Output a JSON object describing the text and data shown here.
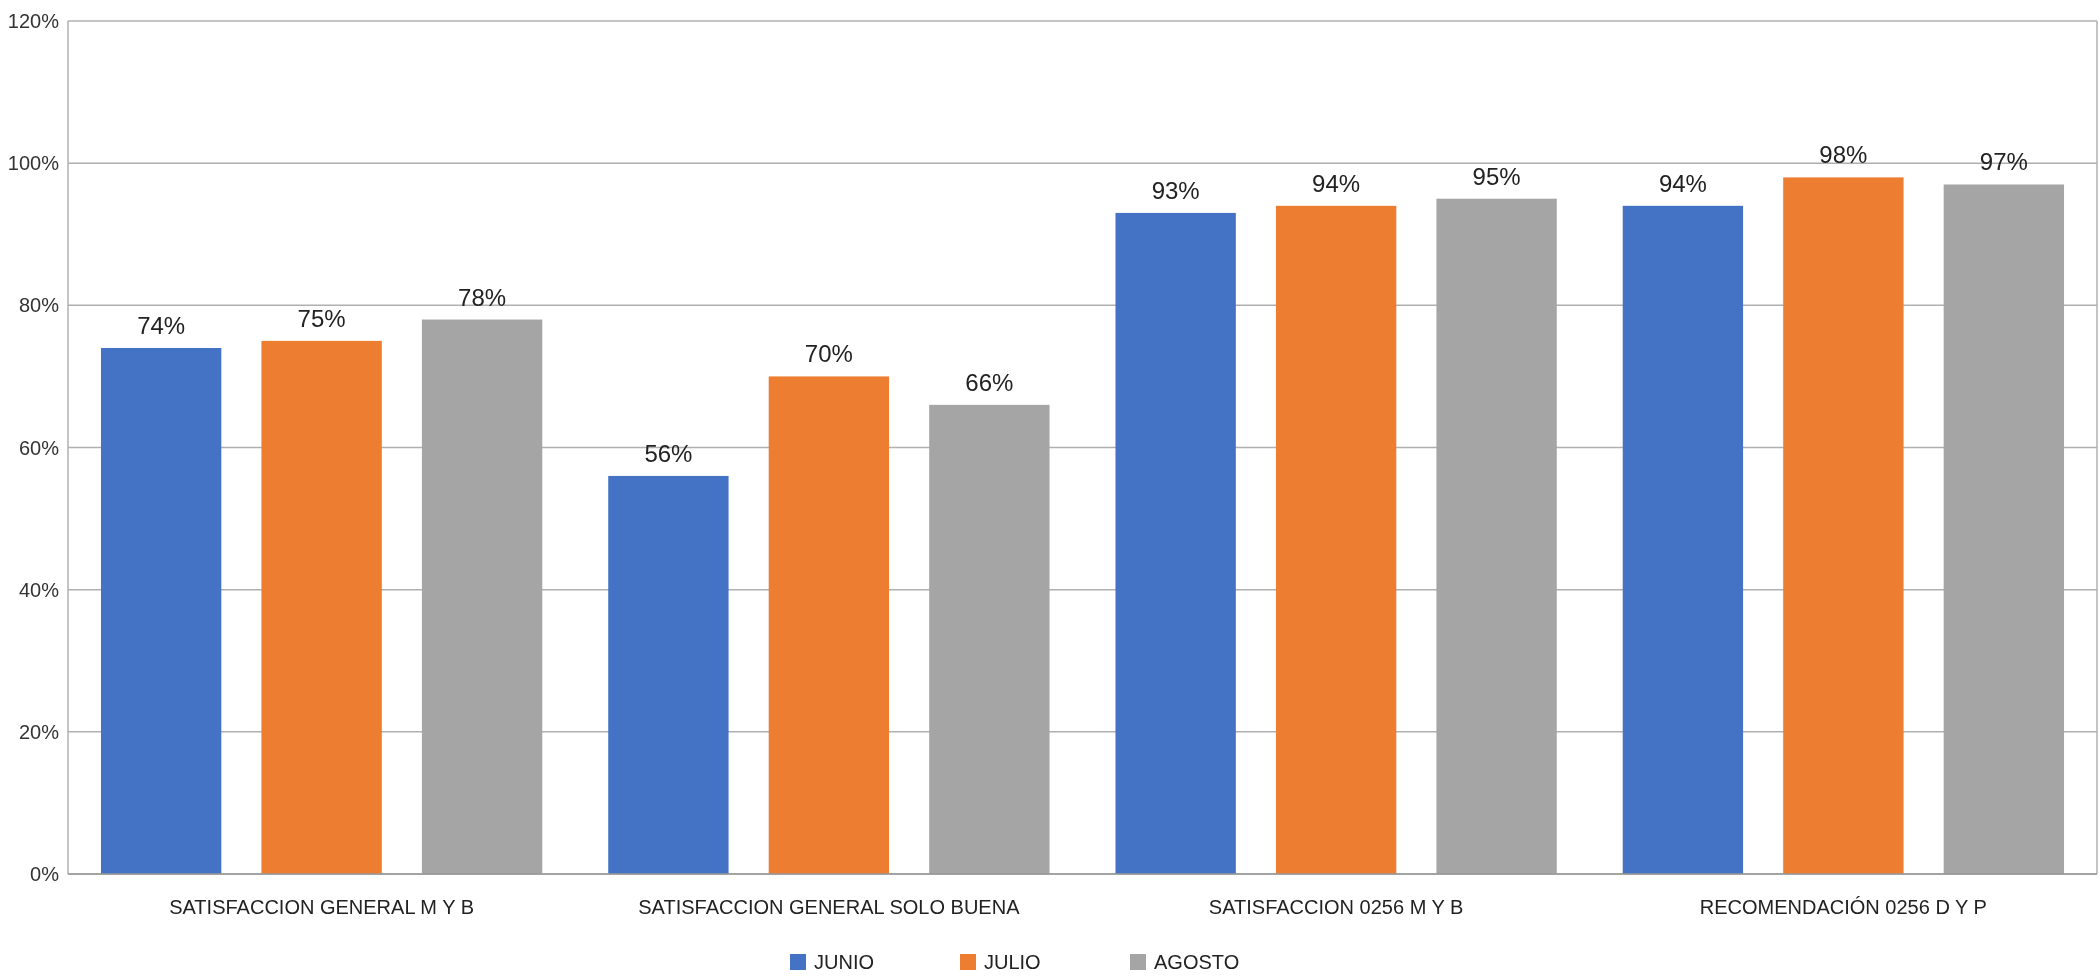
{
  "chart_data": {
    "type": "bar",
    "categories": [
      "SATISFACCION GENERAL M Y B",
      "SATISFACCION GENERAL SOLO BUENA",
      "SATISFACCION 0256 M Y B",
      "RECOMENDACIÓN 0256 D Y P"
    ],
    "series": [
      {
        "name": "JUNIO",
        "color": "#4472c4",
        "values": [
          74,
          56,
          93,
          94
        ],
        "value_labels": [
          "74%",
          "56%",
          "93%",
          "94%"
        ]
      },
      {
        "name": "JULIO",
        "color": "#ed7d31",
        "values": [
          75,
          70,
          94,
          98
        ],
        "value_labels": [
          "75%",
          "70%",
          "94%",
          "98%"
        ]
      },
      {
        "name": "AGOSTO",
        "color": "#a5a5a5",
        "values": [
          78,
          66,
          95,
          97
        ],
        "value_labels": [
          "78%",
          "66%",
          "95%",
          "97%"
        ]
      }
    ],
    "ylim": [
      0,
      120
    ],
    "yticks": [
      {
        "value": 0,
        "label": "0%"
      },
      {
        "value": 20,
        "label": "20%"
      },
      {
        "value": 40,
        "label": "40%"
      },
      {
        "value": 60,
        "label": "60%"
      },
      {
        "value": 80,
        "label": "80%"
      },
      {
        "value": 100,
        "label": "100%"
      },
      {
        "value": 120,
        "label": "120%"
      }
    ],
    "grid": "y",
    "legend": "bottom"
  }
}
